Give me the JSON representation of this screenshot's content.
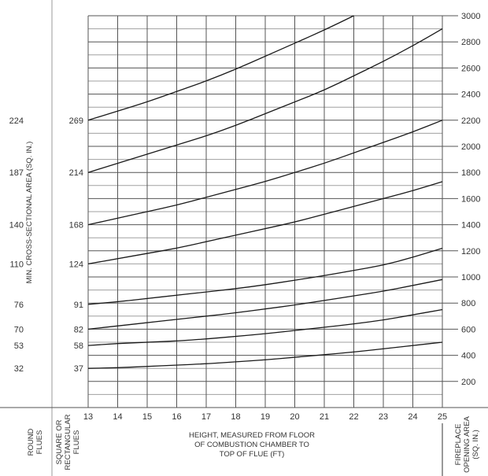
{
  "chart_data": {
    "type": "line",
    "title": "",
    "xlabel": "HEIGHT, MEASURED FROM FLOOR OF COMBUSTION CHAMBER TO TOP OF FLUE (FT)",
    "xlabel_lines": [
      "HEIGHT, MEASURED FROM FLOOR",
      "OF COMBUSTION CHAMBER TO",
      "TOP OF FLUE (FT)"
    ],
    "ylabel_left": "MIN. CROSS-SECTIONAL AREA (SQ. IN.)",
    "ylabel_right": "FIREPLACE OPENING AREA (SQ. IN.)",
    "ylabel_right_lines": [
      "FIREPLACE",
      "OPENING AREA",
      "(SQ. IN.)"
    ],
    "round_flues_label_lines": [
      "ROUND",
      "FLUES"
    ],
    "square_flues_label_lines": [
      "SQUARE OR",
      "RECTANGULAR",
      "FLUES"
    ],
    "x": [
      13,
      14,
      15,
      16,
      17,
      18,
      19,
      20,
      21,
      22,
      23,
      24,
      25
    ],
    "x_ticks": [
      "13",
      "14",
      "15",
      "16",
      "17",
      "18",
      "19",
      "20",
      "21",
      "22",
      "23",
      "24",
      "25"
    ],
    "xlim": [
      13,
      25
    ],
    "ylim": [
      0,
      3000
    ],
    "y_ticks_right": [
      "200",
      "400",
      "600",
      "800",
      "1000",
      "1200",
      "1400",
      "1600",
      "1800",
      "2000",
      "2200",
      "2400",
      "2600",
      "2800",
      "3000"
    ],
    "grid": true,
    "legend_position": "left (flue size labels at curve starts)",
    "series": [
      {
        "name": "Round 224 / Square 269",
        "round": "224",
        "square": "269",
        "values": [
          2200,
          2270,
          2340,
          2420,
          2500,
          2590,
          2690,
          2790,
          2890,
          3000,
          null,
          null,
          null
        ]
      },
      {
        "name": "Round 187 / Square 214",
        "round": "187",
        "square": "214",
        "values": [
          1800,
          1870,
          1940,
          2010,
          2080,
          2160,
          2250,
          2340,
          2430,
          2540,
          2650,
          2770,
          2900
        ]
      },
      {
        "name": "Round 140 / Square 168",
        "round": "140",
        "square": "168",
        "values": [
          1400,
          1450,
          1500,
          1550,
          1610,
          1670,
          1730,
          1800,
          1870,
          1950,
          2030,
          2110,
          2200
        ]
      },
      {
        "name": "Round 110 / Square 124",
        "round": "110",
        "square": "124",
        "values": [
          1100,
          1140,
          1180,
          1220,
          1270,
          1320,
          1370,
          1420,
          1480,
          1540,
          1600,
          1660,
          1730
        ]
      },
      {
        "name": "Round 76 / Square 91",
        "round": "76",
        "square": "91",
        "values": [
          790,
          810,
          835,
          860,
          885,
          910,
          940,
          975,
          1010,
          1050,
          1090,
          1150,
          1220
        ]
      },
      {
        "name": "Round 70 / Square 82",
        "round": "70",
        "square": "82",
        "values": [
          600,
          625,
          650,
          675,
          700,
          725,
          755,
          785,
          820,
          855,
          890,
          935,
          980
        ]
      },
      {
        "name": "Round 53 / Square 58",
        "round": "53",
        "square": "58",
        "values": [
          475,
          490,
          500,
          510,
          525,
          545,
          565,
          590,
          615,
          640,
          670,
          710,
          750
        ]
      },
      {
        "name": "Round 32 / Square 37",
        "round": "32",
        "square": "37",
        "values": [
          300,
          305,
          315,
          325,
          335,
          350,
          365,
          385,
          405,
          425,
          450,
          475,
          500
        ]
      }
    ]
  },
  "colors": {
    "curve": "#1a1a1a",
    "grid_major": "#555555",
    "grid_minor": "#a0a0a0",
    "text": "#333333"
  }
}
